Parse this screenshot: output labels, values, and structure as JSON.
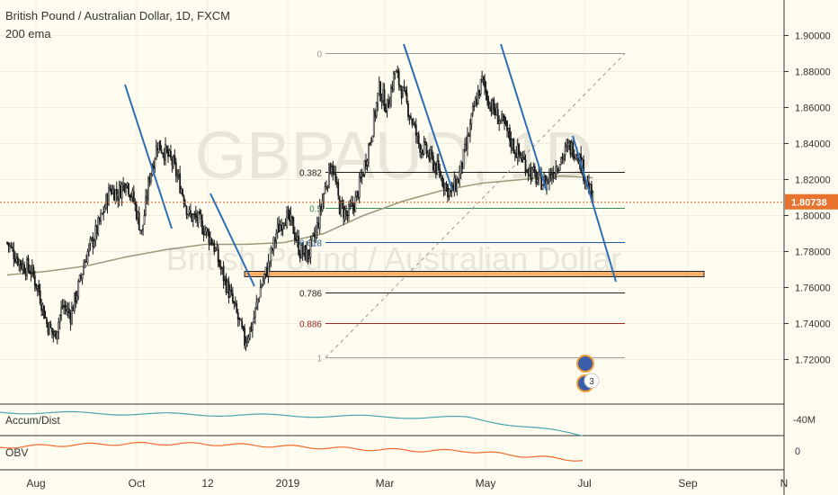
{
  "header": {
    "title": "British Pound / Australian Dollar, 1D, FXCM",
    "indicator": "200 ema"
  },
  "watermark": {
    "symbol": "GBPAUD, 1D",
    "name": "British Pound / Australian Dollar"
  },
  "price": {
    "current_label": "1.80738",
    "current_value": 1.80738,
    "axis_ticks": [
      "1.90000",
      "1.88000",
      "1.86000",
      "1.84000",
      "1.82000",
      "1.80000",
      "1.78000",
      "1.76000",
      "1.74000",
      "1.72000"
    ]
  },
  "x_axis": {
    "labels": [
      "Aug",
      "Oct",
      "12",
      "2019",
      "Mar",
      "May",
      "Jul",
      "Sep",
      "N"
    ]
  },
  "fibonacci": {
    "levels": [
      {
        "label": "0",
        "value": 1.89,
        "color": "#9a9a9a"
      },
      {
        "label": "0.382",
        "value": 1.824,
        "color": "#222222"
      },
      {
        "label": "0.5",
        "value": 1.804,
        "color": "#3a8a5e"
      },
      {
        "label": "0.618",
        "value": 1.785,
        "color": "#1f5a9a"
      },
      {
        "label": "0.786",
        "value": 1.757,
        "color": "#222222"
      },
      {
        "label": "0.886",
        "value": 1.74,
        "color": "#9a2a2a"
      },
      {
        "label": "1",
        "value": 1.721,
        "color": "#9a9a9a"
      }
    ]
  },
  "zone": {
    "from": 1.7665,
    "to": 1.769
  },
  "panels": {
    "accum": {
      "title": "Accum/Dist",
      "axis_label": "-40M"
    },
    "obv": {
      "title": "OBV",
      "axis_label": "0"
    }
  },
  "events": {
    "badge_count": "3"
  },
  "colors": {
    "up": "#ffffff",
    "down": "#1a1a1a",
    "wick": "#1a1a1a",
    "ema": "#9a9a7a",
    "trend": "#2e6db4",
    "price_line": "#e06a32",
    "price_tag": "#e8732f",
    "zone_fill": "#f6b26b",
    "zone_border": "#222222",
    "accum": "#4aa3b0",
    "obv": "#f06a2a"
  },
  "chart_data": {
    "type": "candlestick",
    "symbol": "British Pound / Australian Dollar",
    "interval": "1D",
    "ylim": [
      1.71,
      1.91
    ],
    "y_ticks": [
      1.9,
      1.88,
      1.86,
      1.84,
      1.82,
      1.8,
      1.78,
      1.76,
      1.74,
      1.72
    ],
    "x_labels": [
      "Aug",
      "Oct",
      "12",
      "2019",
      "Mar",
      "May",
      "Jul",
      "Sep",
      "N"
    ],
    "close_path": [
      [
        0,
        1.785
      ],
      [
        6,
        1.778
      ],
      [
        12,
        1.772
      ],
      [
        18,
        1.77
      ],
      [
        24,
        1.758
      ],
      [
        30,
        1.74
      ],
      [
        36,
        1.733
      ],
      [
        42,
        1.75
      ],
      [
        48,
        1.745
      ],
      [
        54,
        1.76
      ],
      [
        60,
        1.778
      ],
      [
        66,
        1.788
      ],
      [
        72,
        1.8
      ],
      [
        78,
        1.815
      ],
      [
        84,
        1.812
      ],
      [
        90,
        1.82
      ],
      [
        96,
        1.808
      ],
      [
        102,
        1.79
      ],
      [
        108,
        1.822
      ],
      [
        114,
        1.84
      ],
      [
        120,
        1.835
      ],
      [
        126,
        1.828
      ],
      [
        132,
        1.815
      ],
      [
        138,
        1.8
      ],
      [
        144,
        1.798
      ],
      [
        150,
        1.792
      ],
      [
        156,
        1.785
      ],
      [
        162,
        1.77
      ],
      [
        168,
        1.758
      ],
      [
        174,
        1.745
      ],
      [
        180,
        1.73
      ],
      [
        186,
        1.74
      ],
      [
        192,
        1.76
      ],
      [
        198,
        1.772
      ],
      [
        204,
        1.79
      ],
      [
        210,
        1.8
      ],
      [
        216,
        1.795
      ],
      [
        222,
        1.78
      ],
      [
        228,
        1.778
      ],
      [
        234,
        1.79
      ],
      [
        240,
        1.812
      ],
      [
        246,
        1.83
      ],
      [
        252,
        1.805
      ],
      [
        258,
        1.8
      ],
      [
        264,
        1.808
      ],
      [
        270,
        1.825
      ],
      [
        276,
        1.845
      ],
      [
        282,
        1.87
      ],
      [
        288,
        1.86
      ],
      [
        294,
        1.88
      ],
      [
        300,
        1.868
      ],
      [
        306,
        1.855
      ],
      [
        312,
        1.84
      ],
      [
        318,
        1.835
      ],
      [
        324,
        1.828
      ],
      [
        330,
        1.82
      ],
      [
        336,
        1.812
      ],
      [
        342,
        1.82
      ],
      [
        348,
        1.838
      ],
      [
        354,
        1.86
      ],
      [
        360,
        1.875
      ],
      [
        366,
        1.862
      ],
      [
        372,
        1.855
      ],
      [
        378,
        1.848
      ],
      [
        384,
        1.838
      ],
      [
        390,
        1.832
      ],
      [
        396,
        1.825
      ],
      [
        402,
        1.82
      ],
      [
        408,
        1.818
      ],
      [
        414,
        1.825
      ],
      [
        420,
        1.832
      ],
      [
        426,
        1.838
      ],
      [
        432,
        1.836
      ],
      [
        438,
        1.822
      ],
      [
        444,
        1.808
      ]
    ],
    "ema_200": [
      [
        0,
        1.767
      ],
      [
        30,
        1.769
      ],
      [
        60,
        1.772
      ],
      [
        90,
        1.777
      ],
      [
        120,
        1.781
      ],
      [
        150,
        1.784
      ],
      [
        180,
        1.784
      ],
      [
        210,
        1.785
      ],
      [
        240,
        1.79
      ],
      [
        270,
        1.8
      ],
      [
        300,
        1.808
      ],
      [
        330,
        1.814
      ],
      [
        360,
        1.818
      ],
      [
        390,
        1.82
      ],
      [
        420,
        1.822
      ],
      [
        444,
        1.821
      ]
    ],
    "fib_levels": [
      0,
      0.382,
      0.5,
      0.618,
      0.786,
      0.886,
      1
    ],
    "last_price": 1.80738
  }
}
